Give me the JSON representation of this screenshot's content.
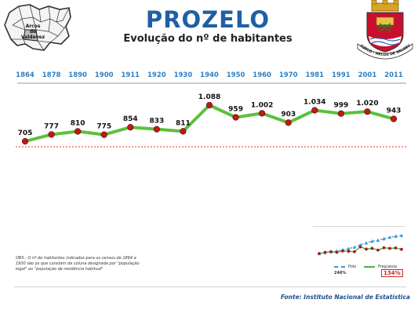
{
  "header": {
    "title": "PROZELO",
    "subtitle": "Evolução do nº de habitantes"
  },
  "map_labels": [
    "Arcos",
    "de",
    "Valdevez"
  ],
  "coat_of_arms": {
    "scroll_text": "PROZELO - ARCOS DE VALDEVEZ",
    "colors": {
      "shield_red": "#c8102e",
      "crown_gold": "#d9a521",
      "water_blue": "#2e5aa8"
    }
  },
  "chart_data": {
    "type": "line",
    "categories": [
      "1864",
      "1878",
      "1890",
      "1900",
      "1911",
      "1920",
      "1930",
      "1940",
      "1950",
      "1960",
      "1970",
      "1981",
      "1991",
      "2001",
      "2011"
    ],
    "values": [
      705,
      777,
      810,
      775,
      854,
      833,
      811,
      1088,
      959,
      1002,
      903,
      1034,
      999,
      1020,
      943
    ],
    "data_labels": [
      "705",
      "777",
      "810",
      "775",
      "854",
      "833",
      "811",
      "1.088",
      "959",
      "1.002",
      "903",
      "1.034",
      "999",
      "1.020",
      "943"
    ],
    "reference_line": 705,
    "colors": {
      "line": "#5ac23a",
      "marker": "#c01818",
      "year": "#2f7fc1",
      "reference": "#e03030"
    }
  },
  "mini_chart": {
    "legend": {
      "polo": "Polo",
      "freguesia": "Freguesia"
    },
    "percent_polo": "246%",
    "percent_freguesia": "134%",
    "polo_index": [
      100,
      108,
      115,
      121,
      130,
      140,
      152,
      170,
      186,
      200,
      208,
      220,
      232,
      240,
      246
    ],
    "freguesia_index": [
      100,
      110,
      115,
      110,
      121,
      118,
      115,
      154,
      136,
      142,
      128,
      147,
      142,
      145,
      134
    ],
    "colors": {
      "polo": "#3a9ad9",
      "freguesia": "#4ab24a"
    }
  },
  "footnote": "OBS.: O nº de habitantes indicados para os censos de 1864 a 1930 são os que constam da coluna designada por \"população legal\" ou \"população de residência habitual\"",
  "source": "Fonte: Instituto Nacional de Estatística"
}
